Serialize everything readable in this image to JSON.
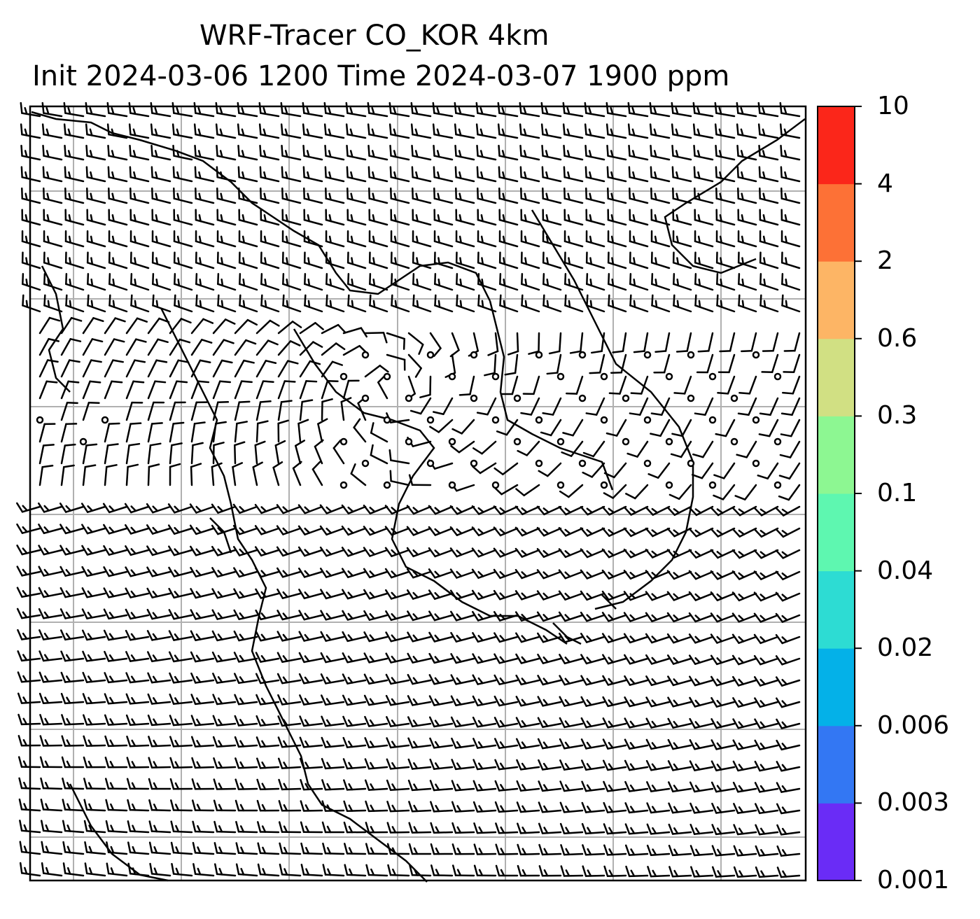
{
  "title": {
    "line1": "WRF-Tracer CO_KOR 4km",
    "line2": "Init 2024-03-06 1200 Time 2024-03-07 1900 ppm"
  },
  "colorbar": {
    "ticks": [
      "0.001",
      "0.003",
      "0.006",
      "0.02",
      "0.04",
      "0.1",
      "0.3",
      "0.6",
      "2",
      "4",
      "10"
    ],
    "colors": [
      "#6a2cf6",
      "#3377f3",
      "#04b1e8",
      "#2ddcd3",
      "#5ef7b0",
      "#8df792",
      "#d1e083",
      "#fdb565",
      "#fd7136",
      "#fb261a"
    ]
  },
  "map": {
    "gridlines": true,
    "wind_barbs": true,
    "calm_markers": true,
    "coastlines": true
  }
}
